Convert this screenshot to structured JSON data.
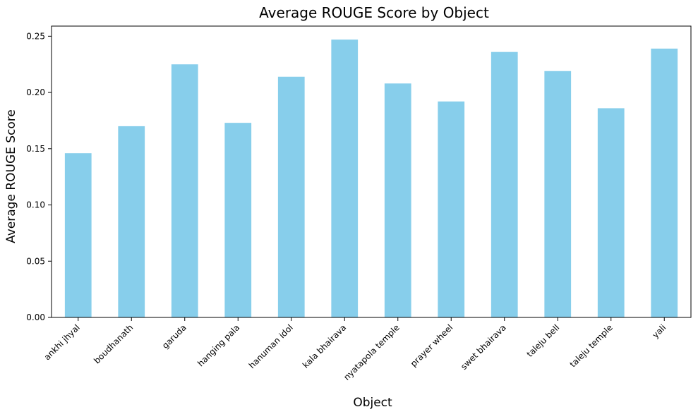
{
  "chart_data": {
    "type": "bar",
    "title": "Average ROUGE Score by Object",
    "xlabel": "Object",
    "ylabel": "Average ROUGE Score",
    "categories": [
      "ankhi jhyal",
      "boudhanath",
      "garuda",
      "hanging pala",
      "hanuman idol",
      "kala bhairava",
      "nyatapola temple",
      "prayer wheel",
      "swet bhairava",
      "taleju bell",
      "taleju temple",
      "yali"
    ],
    "values": [
      0.146,
      0.17,
      0.225,
      0.173,
      0.214,
      0.247,
      0.208,
      0.192,
      0.236,
      0.219,
      0.186,
      0.239
    ],
    "ylim": [
      0,
      0.259
    ],
    "yticks": [
      0.0,
      0.05,
      0.1,
      0.15,
      0.2,
      0.25
    ],
    "ytick_labels": [
      "0.00",
      "0.05",
      "0.10",
      "0.15",
      "0.20",
      "0.25"
    ],
    "grid": false,
    "legend": "none",
    "bar_color": "#87CEEB"
  }
}
